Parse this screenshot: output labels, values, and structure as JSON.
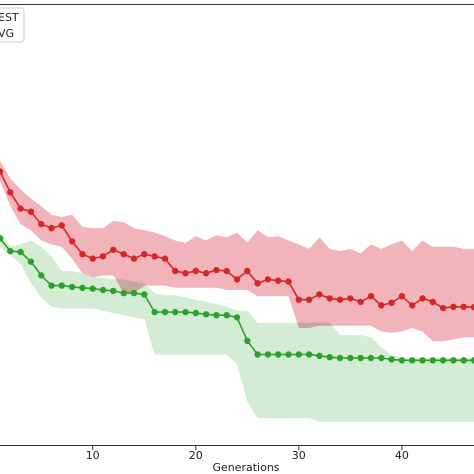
{
  "chart_data": {
    "type": "line",
    "title": "",
    "xlabel": "Generations",
    "ylabel": "",
    "xlim": [
      1,
      47
    ],
    "ylim": [
      0,
      100
    ],
    "xticks": [
      10,
      20,
      30,
      40
    ],
    "grid": false,
    "legend": {
      "placement": "top-left",
      "entries": [
        {
          "label": "EST",
          "color": "#d62728"
        },
        {
          "label": "VG",
          "color": "#2ca02c"
        }
      ]
    },
    "x": [
      1,
      2,
      3,
      4,
      5,
      6,
      7,
      8,
      9,
      10,
      11,
      12,
      13,
      14,
      15,
      16,
      17,
      18,
      19,
      20,
      21,
      22,
      23,
      24,
      25,
      26,
      27,
      28,
      29,
      30,
      31,
      32,
      33,
      34,
      35,
      36,
      37,
      38,
      39,
      40,
      41,
      42,
      43,
      44,
      45,
      46,
      47
    ],
    "series": [
      {
        "name": "EST",
        "color": "#d62728",
        "fill_color": "#f1b4ba",
        "values": [
          62.1,
          57.4,
          53.7,
          53.0,
          50.2,
          49.3,
          49.9,
          46.3,
          43.4,
          42.4,
          42.9,
          44.4,
          43.4,
          42.4,
          43.4,
          42.9,
          42.4,
          39.6,
          39.1,
          39.6,
          39.1,
          39.8,
          39.6,
          37.7,
          39.6,
          36.8,
          37.7,
          37.4,
          37.2,
          33.1,
          33.1,
          34.3,
          33.4,
          33.1,
          33.4,
          32.6,
          33.9,
          31.8,
          32.4,
          33.9,
          31.8,
          33.4,
          32.6,
          31.2,
          31.5,
          31.5,
          31.4
        ],
        "upper": [
          64.5,
          60.5,
          58.1,
          56.0,
          54.3,
          52.3,
          51.8,
          52.3,
          49.6,
          49.3,
          49.3,
          50.9,
          50.6,
          49.3,
          48.8,
          48.3,
          47.5,
          46.5,
          46.0,
          47.5,
          46.5,
          47.7,
          47.2,
          48.3,
          46.0,
          48.8,
          47.2,
          47.5,
          46.5,
          45.6,
          44.6,
          47.2,
          44.6,
          44.1,
          44.6,
          43.6,
          45.6,
          44.6,
          45.6,
          46.5,
          44.1,
          46.5,
          45.1,
          45.1,
          45.1,
          44.6,
          44.6
        ],
        "lower": [
          60.0,
          54.3,
          50.2,
          48.8,
          46.5,
          45.6,
          45.1,
          42.4,
          39.1,
          38.1,
          38.6,
          38.6,
          34.6,
          34.6,
          36.3,
          36.3,
          36.3,
          35.8,
          35.8,
          35.8,
          35.8,
          35.8,
          35.3,
          35.3,
          35.3,
          33.9,
          33.9,
          33.9,
          33.9,
          26.7,
          26.7,
          27.2,
          27.2,
          27.2,
          27.2,
          27.2,
          27.2,
          25.9,
          25.6,
          25.9,
          26.7,
          25.9,
          23.7,
          23.7,
          24.1,
          24.6,
          24.6
        ]
      },
      {
        "name": "VG",
        "color": "#2ca02c",
        "fill_color": "#c6e6c6",
        "values": [
          47.0,
          44.1,
          43.9,
          41.7,
          38.6,
          36.3,
          36.3,
          36.0,
          35.8,
          35.6,
          35.3,
          35.1,
          34.6,
          34.6,
          34.3,
          30.3,
          30.3,
          30.3,
          30.3,
          30.1,
          29.8,
          29.6,
          29.6,
          29.1,
          23.8,
          20.7,
          20.7,
          20.7,
          20.7,
          20.7,
          20.7,
          20.4,
          20.1,
          19.9,
          19.9,
          19.9,
          19.9,
          19.9,
          19.6,
          19.4,
          19.4,
          19.4,
          19.4,
          19.4,
          19.4,
          19.4,
          19.4
        ],
        "upper": [
          48.2,
          45.1,
          45.6,
          46.5,
          45.1,
          42.9,
          39.6,
          39.6,
          39.1,
          38.1,
          38.1,
          37.7,
          37.7,
          37.2,
          36.8,
          34.6,
          34.1,
          34.1,
          33.6,
          33.1,
          32.6,
          32.1,
          31.5,
          30.6,
          30.6,
          27.9,
          27.9,
          27.9,
          27.9,
          27.9,
          27.9,
          27.9,
          27.9,
          25.1,
          25.1,
          25.1,
          24.6,
          22.3,
          20.6,
          19.9,
          19.9,
          19.9,
          19.9,
          19.9,
          19.9,
          19.9,
          19.9
        ],
        "lower": [
          45.1,
          43.1,
          41.2,
          36.8,
          33.6,
          31.5,
          31.1,
          31.1,
          31.1,
          31.1,
          30.6,
          30.1,
          29.6,
          29.1,
          28.7,
          20.7,
          20.7,
          20.7,
          20.7,
          20.7,
          20.7,
          20.7,
          20.7,
          18.5,
          10.1,
          6.3,
          6.3,
          6.3,
          6.3,
          6.3,
          6.3,
          5.5,
          5.5,
          5.5,
          5.5,
          5.5,
          5.5,
          5.5,
          5.5,
          5.5,
          5.5,
          5.5,
          5.5,
          5.5,
          5.5,
          5.5,
          5.5
        ]
      }
    ]
  }
}
